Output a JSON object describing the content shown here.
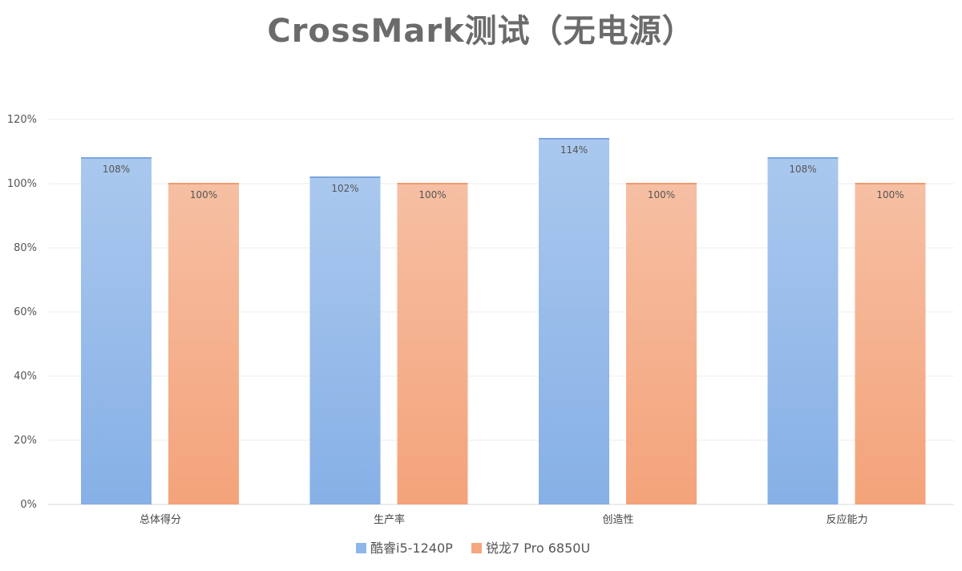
{
  "chart_data": {
    "type": "bar",
    "title": "CrossMark测试（无电源）",
    "categories": [
      "总体得分",
      "生产率",
      "创造性",
      "反应能力"
    ],
    "series": [
      {
        "name": "酷睿i5-1240P",
        "values": [
          108,
          102,
          114,
          108
        ],
        "labels": [
          "108%",
          "102%",
          "114%",
          "108%"
        ],
        "color": "#8fb6e8"
      },
      {
        "name": "锐龙7 Pro 6850U",
        "values": [
          100,
          100,
          100,
          100
        ],
        "labels": [
          "100%",
          "100%",
          "100%",
          "100%"
        ],
        "color": "#f5a77f"
      }
    ],
    "ylim": [
      0,
      120
    ],
    "yticks": [
      0,
      20,
      40,
      60,
      80,
      100,
      120
    ],
    "ytick_labels": [
      "0%",
      "20%",
      "40%",
      "60%",
      "80%",
      "100%",
      "120%"
    ],
    "grid": true,
    "legend": "bottom-center",
    "xlabel": "",
    "ylabel": ""
  }
}
